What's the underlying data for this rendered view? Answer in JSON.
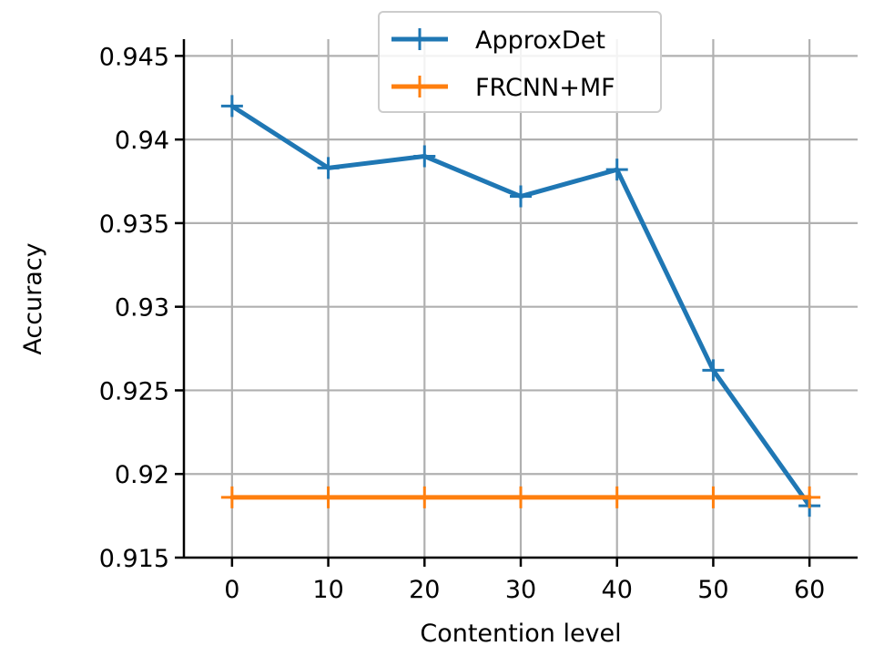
{
  "chart_data": {
    "type": "line",
    "title": "",
    "xlabel": "Contention level",
    "ylabel": "Accuracy",
    "x": [
      0,
      10,
      20,
      30,
      40,
      50,
      60
    ],
    "xticks": [
      0,
      10,
      20,
      30,
      40,
      50,
      60
    ],
    "xtick_labels": [
      "0",
      "10",
      "20",
      "30",
      "40",
      "50",
      "60"
    ],
    "yticks": [
      0.915,
      0.92,
      0.925,
      0.93,
      0.935,
      0.94,
      0.945
    ],
    "ytick_labels": [
      "0.915",
      "0.92",
      "0.925",
      "0.93",
      "0.935",
      "0.94",
      "0.945"
    ],
    "xlim": [
      -5,
      65
    ],
    "ylim": [
      0.915,
      0.946
    ],
    "grid": true,
    "legend_position": "top-center",
    "series": [
      {
        "name": "ApproxDet",
        "color": "#1f77b4",
        "marker": "plus",
        "values": [
          0.942,
          0.9383,
          0.939,
          0.9366,
          0.9382,
          0.9262,
          0.9181
        ]
      },
      {
        "name": "FRCNN+MF",
        "color": "#ff7f0e",
        "marker": "plus",
        "values": [
          0.9186,
          0.9186,
          0.9186,
          0.9186,
          0.9186,
          0.9186,
          0.9186
        ]
      }
    ]
  }
}
